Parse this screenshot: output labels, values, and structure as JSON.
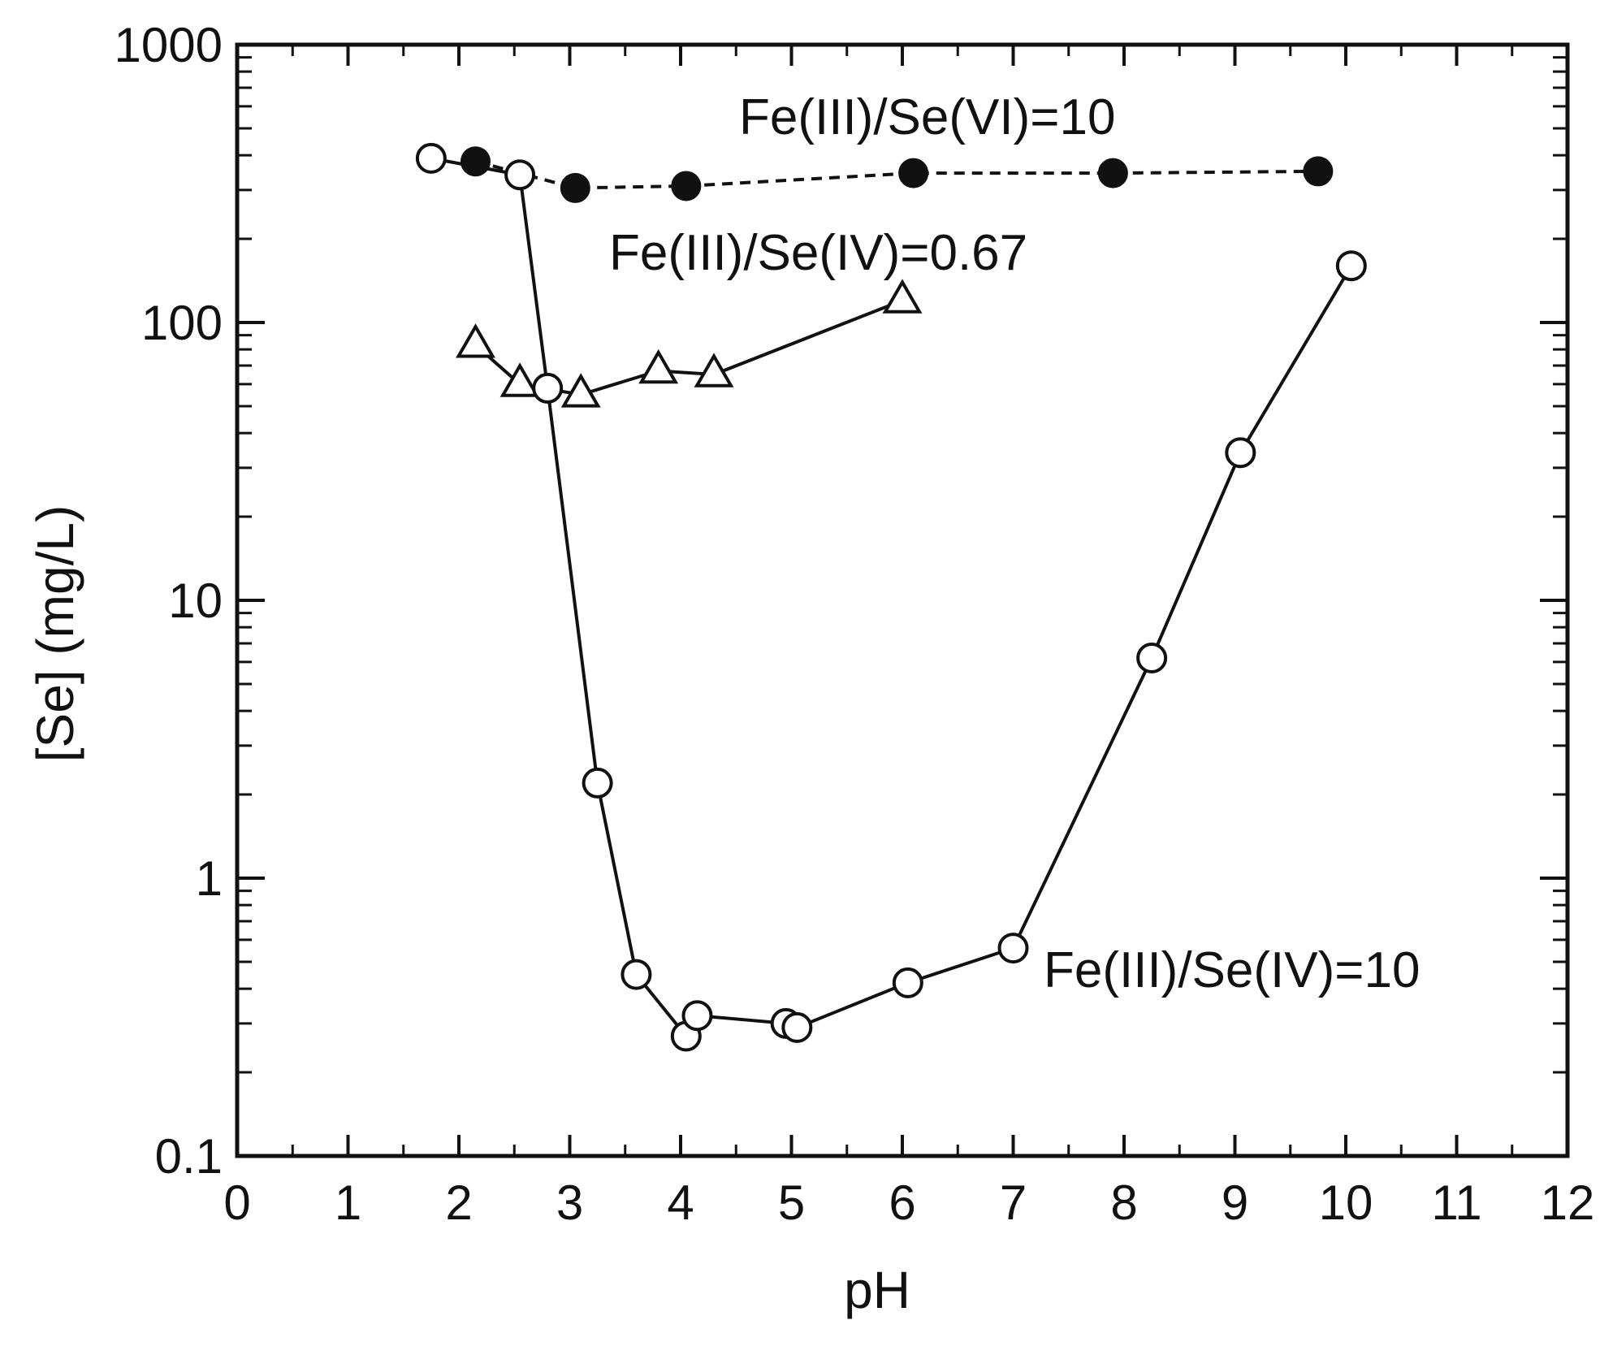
{
  "chart_data": {
    "type": "scatter",
    "title": "",
    "xlabel": "pH",
    "ylabel": "[Se]  (mg/L)",
    "xlim": [
      0,
      12
    ],
    "ylim": [
      0.1,
      1000
    ],
    "yscale": "log",
    "grid": false,
    "legend": "none",
    "x_ticks": [
      0,
      1,
      2,
      3,
      4,
      5,
      6,
      7,
      8,
      9,
      10,
      11,
      12
    ],
    "x_tick_labels": [
      "0",
      "1",
      "2",
      "3",
      "4",
      "5",
      "6",
      "7",
      "8",
      "9",
      "10",
      "11",
      "12"
    ],
    "y_ticks": [
      0.1,
      1,
      10,
      100,
      1000
    ],
    "y_tick_labels": [
      "0.1",
      "1",
      "10",
      "100",
      "1000"
    ],
    "series": [
      {
        "name": "Fe(III)/Se(VI)=10",
        "marker": "filled-circle",
        "line": "dashed",
        "points": [
          {
            "x": 2.15,
            "y": 380
          },
          {
            "x": 3.05,
            "y": 305
          },
          {
            "x": 4.05,
            "y": 310
          },
          {
            "x": 6.1,
            "y": 345
          },
          {
            "x": 7.9,
            "y": 345
          },
          {
            "x": 9.75,
            "y": 350
          }
        ]
      },
      {
        "name": "Fe(III)/Se(IV)=0.67",
        "marker": "open-triangle",
        "line": "solid",
        "points": [
          {
            "x": 2.15,
            "y": 83
          },
          {
            "x": 2.55,
            "y": 60
          },
          {
            "x": 3.1,
            "y": 55
          },
          {
            "x": 3.8,
            "y": 67
          },
          {
            "x": 4.3,
            "y": 65
          },
          {
            "x": 6.0,
            "y": 120
          }
        ]
      },
      {
        "name": "Fe(III)/Se(IV)=10",
        "marker": "open-circle",
        "line": "solid",
        "points": [
          {
            "x": 1.75,
            "y": 390
          },
          {
            "x": 2.55,
            "y": 340
          },
          {
            "x": 2.8,
            "y": 58
          },
          {
            "x": 3.25,
            "y": 2.2
          },
          {
            "x": 3.6,
            "y": 0.45
          },
          {
            "x": 4.05,
            "y": 0.27
          },
          {
            "x": 4.15,
            "y": 0.32
          },
          {
            "x": 4.95,
            "y": 0.3
          },
          {
            "x": 5.05,
            "y": 0.29
          },
          {
            "x": 6.05,
            "y": 0.42
          },
          {
            "x": 7.0,
            "y": 0.56
          },
          {
            "x": 8.25,
            "y": 6.2
          },
          {
            "x": 9.05,
            "y": 34
          },
          {
            "x": 10.05,
            "y": 160
          }
        ]
      }
    ]
  }
}
